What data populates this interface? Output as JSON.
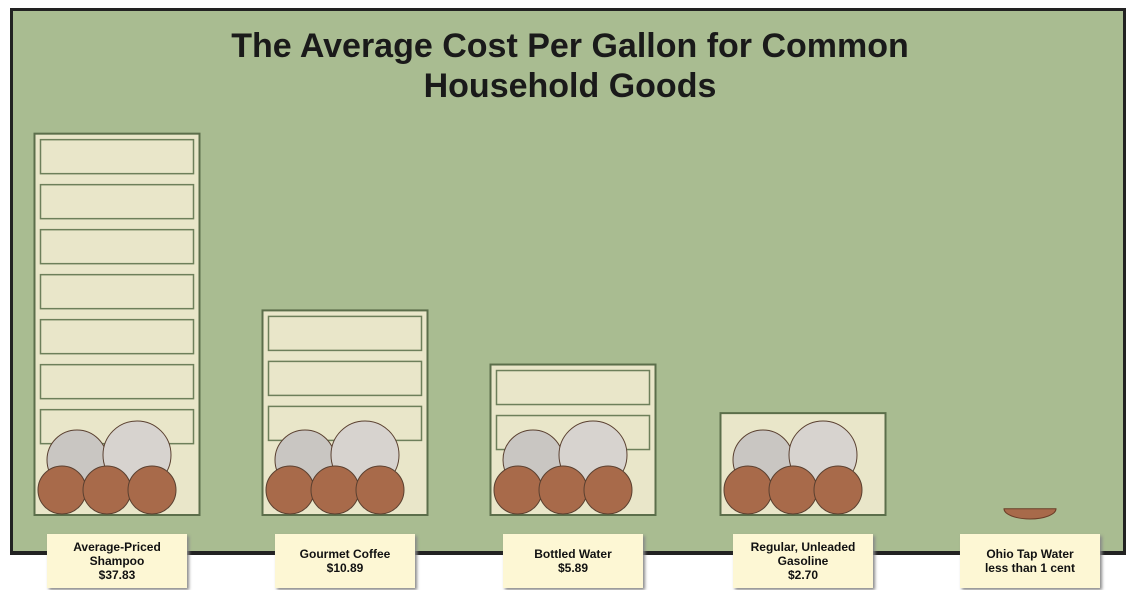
{
  "chart_data": {
    "type": "pictorial-bar",
    "title": "The Average Cost Per Gallon for Common Household Goods",
    "categories": [
      "Average-Priced Shampoo",
      "Gourmet Coffee",
      "Bottled Water",
      "Regular, Unleaded Gasoline",
      "Ohio Tap Water"
    ],
    "values": [
      37.83,
      10.89,
      5.89,
      2.7,
      0.01
    ],
    "value_labels": [
      "$37.83",
      "$10.89",
      "$5.89",
      "$2.70",
      "less than 1 cent"
    ],
    "color": "#e9e6c9"
  }
}
